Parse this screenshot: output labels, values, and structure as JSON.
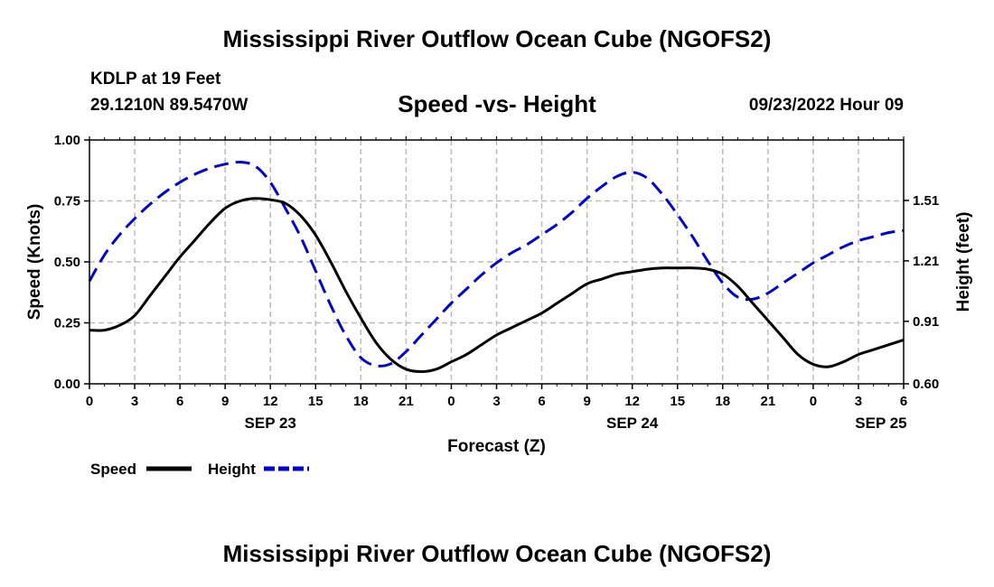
{
  "header": {
    "title": "Mississippi River Outflow Ocean Cube (NGOFS2)",
    "station": "KDLP at 19 Feet",
    "coords": "29.1210N  89.5470W",
    "subtitle": "Speed -vs- Height",
    "datetime": "09/23/2022 Hour 09"
  },
  "footer": {
    "title": "Mississippi River Outflow Ocean Cube (NGOFS2)"
  },
  "colors": {
    "speed": "#000000",
    "height": "#0000cc",
    "grid": "#bbbbbb"
  },
  "chart_data": {
    "type": "line",
    "title": "Speed -vs- Height",
    "xlabel": "Forecast (Z)",
    "ylabel": "Speed (Knots)",
    "ylabel_right": "Height (feet)",
    "xlim": [
      0,
      54
    ],
    "ylim": [
      0,
      1.0
    ],
    "ylim_right": [
      0.6,
      1.81
    ],
    "x_ticks": [
      0,
      3,
      6,
      9,
      12,
      15,
      18,
      21,
      24,
      27,
      30,
      33,
      36,
      39,
      42,
      45,
      48,
      51,
      54
    ],
    "x_tick_labels": [
      "0",
      "3",
      "6",
      "9",
      "12",
      "15",
      "18",
      "21",
      "0",
      "3",
      "6",
      "9",
      "12",
      "15",
      "18",
      "21",
      "0",
      "3",
      "6"
    ],
    "date_labels": [
      {
        "x": 12,
        "label": "SEP 23"
      },
      {
        "x": 36,
        "label": "SEP 24"
      },
      {
        "x": 52.5,
        "label": "SEP 25"
      }
    ],
    "y_ticks": [
      0.0,
      0.25,
      0.5,
      0.75,
      1.0
    ],
    "y_tick_labels": [
      "0.00",
      "0.25",
      "0.50",
      "0.75",
      "1.00"
    ],
    "y_ticks_right": [
      0.6,
      0.91,
      1.21,
      1.51
    ],
    "y_tick_labels_right": [
      "0.60",
      "0.91",
      "1.21",
      "1.51"
    ],
    "grid": true,
    "legend": {
      "placement": "bottom-left",
      "entries": [
        "Speed",
        "Height"
      ]
    },
    "series": [
      {
        "name": "Speed",
        "axis": "left",
        "style": "solid",
        "x": [
          0,
          1,
          2,
          3,
          4,
          5,
          6,
          7,
          8,
          9,
          10,
          11,
          12,
          13,
          14,
          15,
          16,
          17,
          18,
          19,
          20,
          21,
          22,
          23,
          24,
          25,
          26,
          27,
          28,
          29,
          30,
          31,
          32,
          33,
          34,
          35,
          36,
          37,
          38,
          39,
          40,
          41,
          42,
          43,
          44,
          45,
          46,
          47,
          48,
          49,
          50,
          51,
          52,
          53,
          54
        ],
        "values": [
          0.22,
          0.22,
          0.24,
          0.28,
          0.36,
          0.44,
          0.52,
          0.59,
          0.66,
          0.72,
          0.75,
          0.76,
          0.755,
          0.74,
          0.69,
          0.61,
          0.5,
          0.38,
          0.27,
          0.17,
          0.1,
          0.06,
          0.05,
          0.06,
          0.09,
          0.12,
          0.16,
          0.2,
          0.23,
          0.26,
          0.29,
          0.33,
          0.37,
          0.41,
          0.43,
          0.45,
          0.46,
          0.47,
          0.475,
          0.475,
          0.475,
          0.47,
          0.45,
          0.4,
          0.33,
          0.26,
          0.19,
          0.12,
          0.08,
          0.07,
          0.09,
          0.12,
          0.14,
          0.16,
          0.18
        ]
      },
      {
        "name": "Height",
        "axis": "right",
        "style": "dashed",
        "x": [
          0,
          1,
          2,
          3,
          4,
          5,
          6,
          7,
          8,
          9,
          10,
          11,
          12,
          13,
          14,
          15,
          16,
          17,
          18,
          19,
          20,
          21,
          22,
          23,
          24,
          25,
          26,
          27,
          28,
          29,
          30,
          31,
          32,
          33,
          34,
          35,
          36,
          37,
          38,
          39,
          40,
          41,
          42,
          43,
          44,
          45,
          46,
          47,
          48,
          49,
          50,
          51,
          52,
          53,
          54
        ],
        "values": [
          1.11,
          1.24,
          1.34,
          1.42,
          1.49,
          1.55,
          1.6,
          1.64,
          1.67,
          1.69,
          1.7,
          1.68,
          1.6,
          1.47,
          1.33,
          1.16,
          0.99,
          0.84,
          0.73,
          0.69,
          0.7,
          0.76,
          0.84,
          0.92,
          1.0,
          1.07,
          1.14,
          1.2,
          1.25,
          1.29,
          1.34,
          1.39,
          1.45,
          1.52,
          1.58,
          1.63,
          1.65,
          1.62,
          1.54,
          1.44,
          1.33,
          1.21,
          1.1,
          1.03,
          1.02,
          1.05,
          1.1,
          1.15,
          1.2,
          1.24,
          1.28,
          1.31,
          1.33,
          1.35,
          1.36
        ]
      }
    ]
  }
}
